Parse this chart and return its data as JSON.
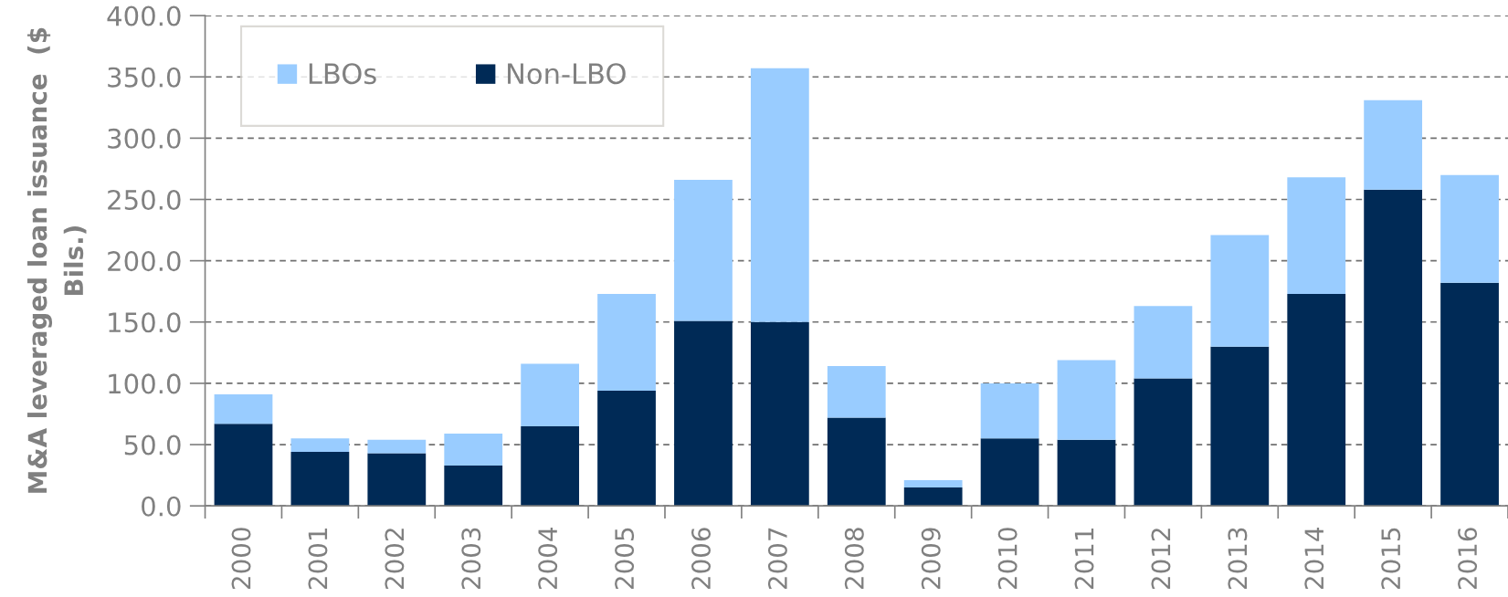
{
  "chart_data": {
    "type": "bar",
    "stacked": true,
    "ylabel": "M&A leveraged loan issuance  ($\nBils.)",
    "categories": [
      "2000",
      "2001",
      "2002",
      "2003",
      "2004",
      "2005",
      "2006",
      "2007",
      "2008",
      "2009",
      "2010",
      "2011",
      "2012",
      "2013",
      "2014",
      "2015",
      "2016"
    ],
    "series": [
      {
        "name": "Non-LBO",
        "color": "#002a56",
        "values": [
          67,
          44,
          43,
          33,
          65,
          94,
          151,
          150,
          72,
          15,
          55,
          54,
          104,
          130,
          173,
          258,
          182
        ]
      },
      {
        "name": "LBOs",
        "color": "#99ccff",
        "values": [
          24,
          11,
          11,
          26,
          51,
          79,
          115,
          207,
          42,
          6,
          45,
          65,
          59,
          91,
          95,
          73,
          88
        ]
      }
    ],
    "ylim": [
      0,
      400
    ],
    "yticks": [
      {
        "value": 0,
        "label": "0.0"
      },
      {
        "value": 50,
        "label": "50.0"
      },
      {
        "value": 100,
        "label": "100.0"
      },
      {
        "value": 150,
        "label": "150.0"
      },
      {
        "value": 200,
        "label": "200.0"
      },
      {
        "value": 250,
        "label": "250.0"
      },
      {
        "value": 300,
        "label": "300.0"
      },
      {
        "value": 350,
        "label": "350.0"
      },
      {
        "value": 400,
        "label": "400.0"
      }
    ],
    "grid": "y",
    "legend": "top left"
  }
}
